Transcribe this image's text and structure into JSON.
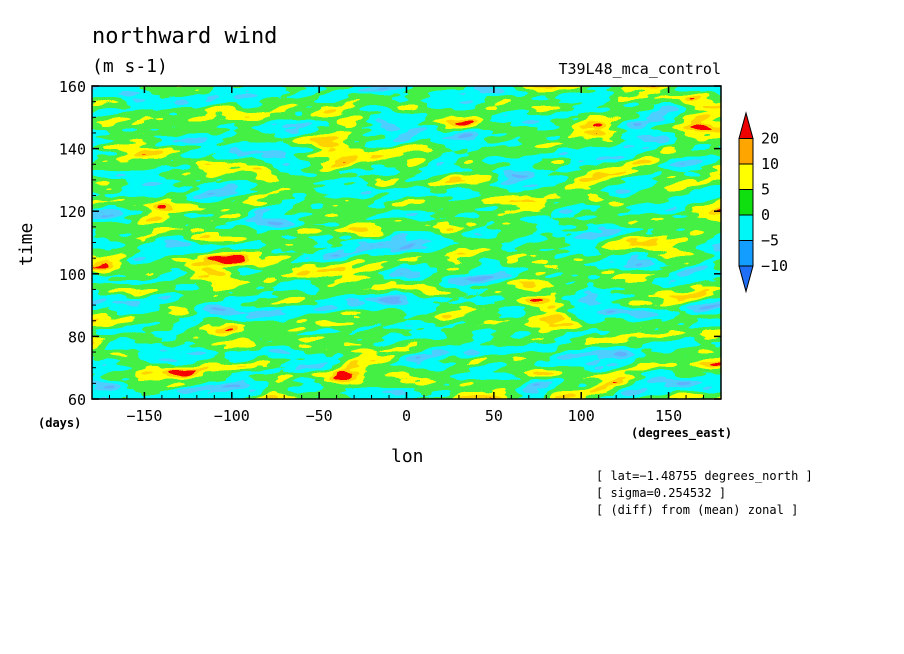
{
  "chart_data": {
    "type": "heatmap",
    "title": "northward wind",
    "units": "(m s-1)",
    "run_label": "T39L48_mca_control",
    "xlabel": "lon",
    "x_units": "(degrees_east)",
    "ylabel": "time",
    "y_units": "(days)",
    "xlim": [
      -180,
      180
    ],
    "ylim": [
      60,
      160
    ],
    "x_ticks": [
      -150,
      -100,
      -50,
      0,
      50,
      100,
      150
    ],
    "x_tick_labels": [
      "−150",
      "−100",
      "−50",
      "0",
      "50",
      "100",
      "150"
    ],
    "y_ticks": [
      60,
      80,
      100,
      120,
      140,
      160
    ],
    "y_tick_labels": [
      "60",
      "80",
      "100",
      "120",
      "140",
      "160"
    ],
    "colorbar": {
      "levels": [
        -10,
        -5,
        0,
        5,
        10,
        20
      ],
      "level_labels": [
        "−10",
        "−5",
        "0",
        "5",
        "10",
        "20"
      ],
      "colors": [
        "#1e6ff5",
        "#139dff",
        "#00f7f7",
        "#0fdf0f",
        "#ffff00",
        "#ffa500",
        "#ee0000"
      ]
    },
    "annotations": [
      "[ lat=−1.48755 degrees_north ]",
      "[ sigma=0.254532 ]",
      "[ (diff) from (mean) zonal ]"
    ]
  }
}
